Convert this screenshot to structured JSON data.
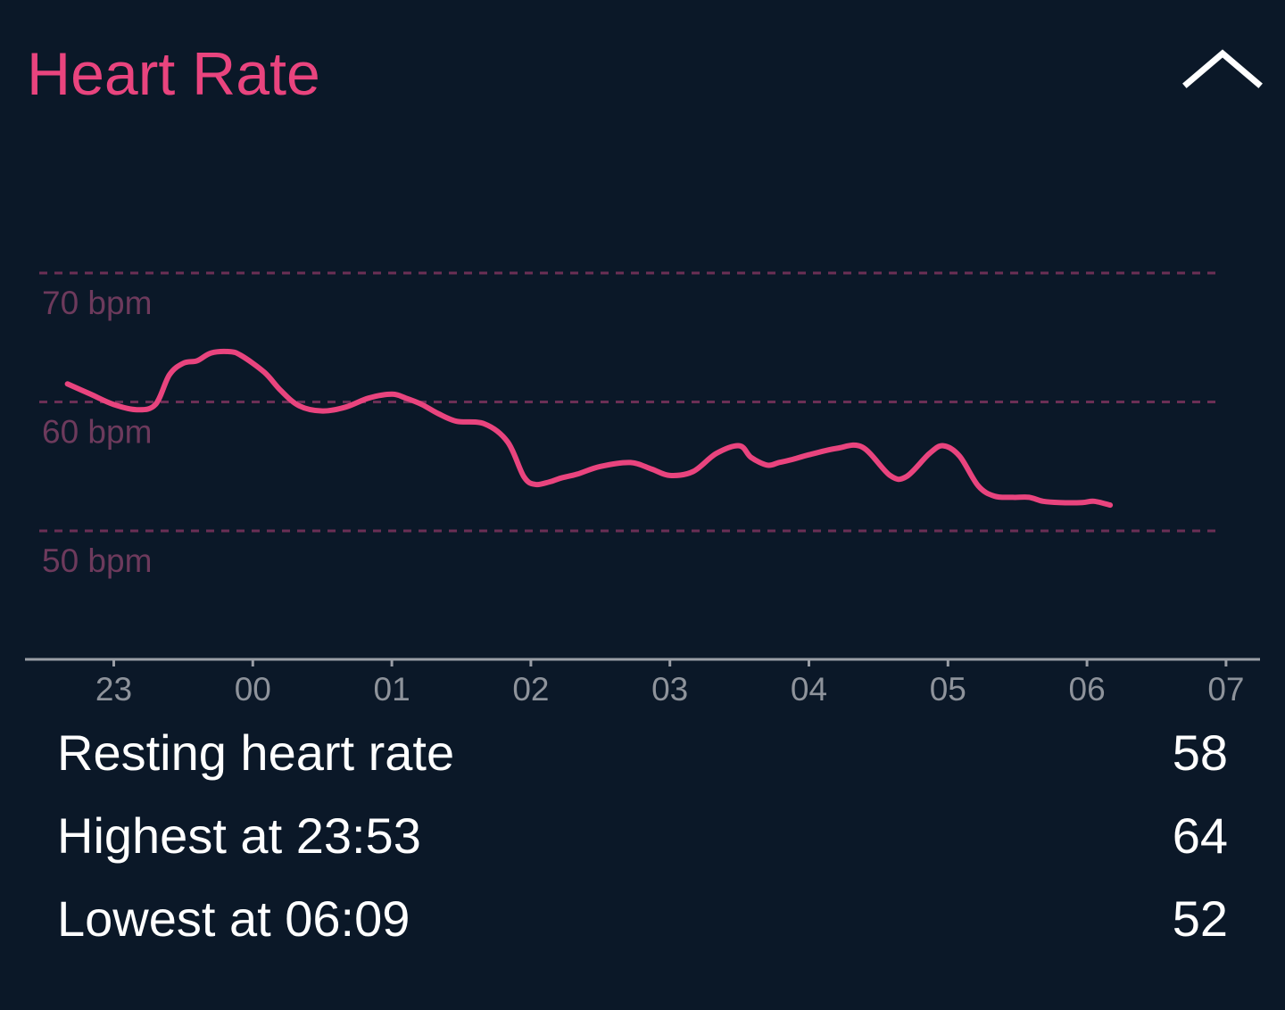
{
  "header": {
    "title": "Heart Rate",
    "collapse_icon": "chevron-up-icon"
  },
  "colors": {
    "background": "#0b1828",
    "accent": "#e9447e",
    "gridline": "#6b2f55",
    "gridlabel": "#6d3a5c",
    "axis": "#9a9ea6",
    "tick_label": "#8e939b"
  },
  "chart_data": {
    "type": "line",
    "title": "",
    "xlabel": "",
    "ylabel": "",
    "x_ticks": [
      "23",
      "00",
      "01",
      "02",
      "03",
      "04",
      "05",
      "06",
      "07"
    ],
    "y_gridlines": [
      {
        "value": 70,
        "label": "70 bpm"
      },
      {
        "value": 60,
        "label": "60 bpm"
      },
      {
        "value": 50,
        "label": "50 bpm"
      }
    ],
    "ylim": [
      45,
      75
    ],
    "xlim": [
      "22:35",
      "07:10"
    ],
    "grid": true,
    "series": [
      {
        "x": [
          "22:40",
          "22:50",
          "23:00",
          "23:10",
          "23:18",
          "23:24",
          "23:30",
          "23:36",
          "23:42",
          "23:50",
          "23:55",
          "00:05",
          "00:12",
          "00:20",
          "00:30",
          "00:40",
          "00:50",
          "01:00",
          "01:06",
          "01:13",
          "01:20",
          "01:28",
          "01:40",
          "01:50",
          "01:57",
          "02:02",
          "02:08",
          "02:13",
          "02:20",
          "02:30",
          "02:43",
          "02:52",
          "03:00",
          "03:10",
          "03:20",
          "03:30",
          "03:35",
          "03:42",
          "03:47",
          "03:52",
          "04:00",
          "04:12",
          "04:23",
          "04:35",
          "04:42",
          "04:52",
          "04:58",
          "05:05",
          "05:13",
          "05:20",
          "05:28",
          "05:35",
          "05:41",
          "05:48",
          "05:58",
          "06:03",
          "06:10"
        ],
        "y": [
          61.4,
          60.6,
          59.8,
          59.4,
          59.8,
          62.1,
          63.0,
          63.2,
          63.8,
          63.9,
          63.6,
          62.3,
          60.9,
          59.7,
          59.3,
          59.6,
          60.3,
          60.6,
          60.3,
          59.8,
          59.1,
          58.5,
          58.3,
          56.9,
          54.2,
          53.6,
          53.8,
          54.1,
          54.4,
          55.0,
          55.3,
          54.8,
          54.3,
          54.6,
          56.0,
          56.6,
          55.7,
          55.1,
          55.3,
          55.5,
          55.9,
          56.4,
          56.5,
          54.3,
          54.2,
          56.0,
          56.6,
          55.8,
          53.5,
          52.7,
          52.6,
          52.6,
          52.3,
          52.2,
          52.2,
          52.3,
          52.0
        ]
      }
    ]
  },
  "stats": [
    {
      "label": "Resting heart rate",
      "value": "58"
    },
    {
      "label": "Highest at 23:53",
      "value": "64"
    },
    {
      "label": "Lowest at 06:09",
      "value": "52"
    }
  ]
}
